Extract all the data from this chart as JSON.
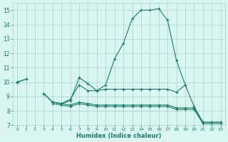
{
  "x": [
    0,
    1,
    2,
    3,
    4,
    5,
    6,
    7,
    8,
    9,
    10,
    11,
    12,
    13,
    14,
    15,
    16,
    17,
    18,
    19,
    20,
    21,
    22,
    23
  ],
  "line1": [
    10.0,
    10.2,
    null,
    9.2,
    8.6,
    8.5,
    8.7,
    10.3,
    9.9,
    9.4,
    9.8,
    11.6,
    12.7,
    14.4,
    15.0,
    15.0,
    15.1,
    14.3,
    11.5,
    9.8,
    null,
    null,
    null,
    null
  ],
  "line2": [
    10.0,
    10.2,
    null,
    9.2,
    8.6,
    8.5,
    8.8,
    9.8,
    9.4,
    9.4,
    9.5,
    9.5,
    9.5,
    9.5,
    9.5,
    9.5,
    9.5,
    9.5,
    9.3,
    9.8,
    8.3,
    7.2,
    7.2,
    7.2
  ],
  "line3": [
    10.0,
    null,
    null,
    null,
    8.6,
    8.5,
    8.4,
    8.6,
    8.5,
    8.4,
    8.4,
    8.4,
    8.4,
    8.4,
    8.4,
    8.4,
    8.4,
    8.4,
    8.2,
    8.2,
    8.2,
    7.2,
    7.2,
    7.2
  ],
  "line4": [
    10.0,
    null,
    null,
    null,
    8.5,
    8.4,
    8.3,
    8.5,
    8.4,
    8.3,
    8.3,
    8.3,
    8.3,
    8.3,
    8.3,
    8.3,
    8.3,
    8.3,
    8.1,
    8.1,
    8.1,
    7.1,
    7.1,
    7.1
  ],
  "color": "#1a7a6e",
  "bg_color": "#d8f5f0",
  "grid_color": "#aacfcc",
  "xlabel": "Humidex (Indice chaleur)",
  "ylim": [
    7,
    15.5
  ],
  "xlim": [
    -0.5,
    23.5
  ],
  "yticks": [
    7,
    8,
    9,
    10,
    11,
    12,
    13,
    14,
    15
  ],
  "xticks": [
    0,
    1,
    2,
    3,
    4,
    5,
    6,
    7,
    8,
    9,
    10,
    11,
    12,
    13,
    14,
    15,
    16,
    17,
    18,
    19,
    20,
    21,
    22,
    23
  ]
}
